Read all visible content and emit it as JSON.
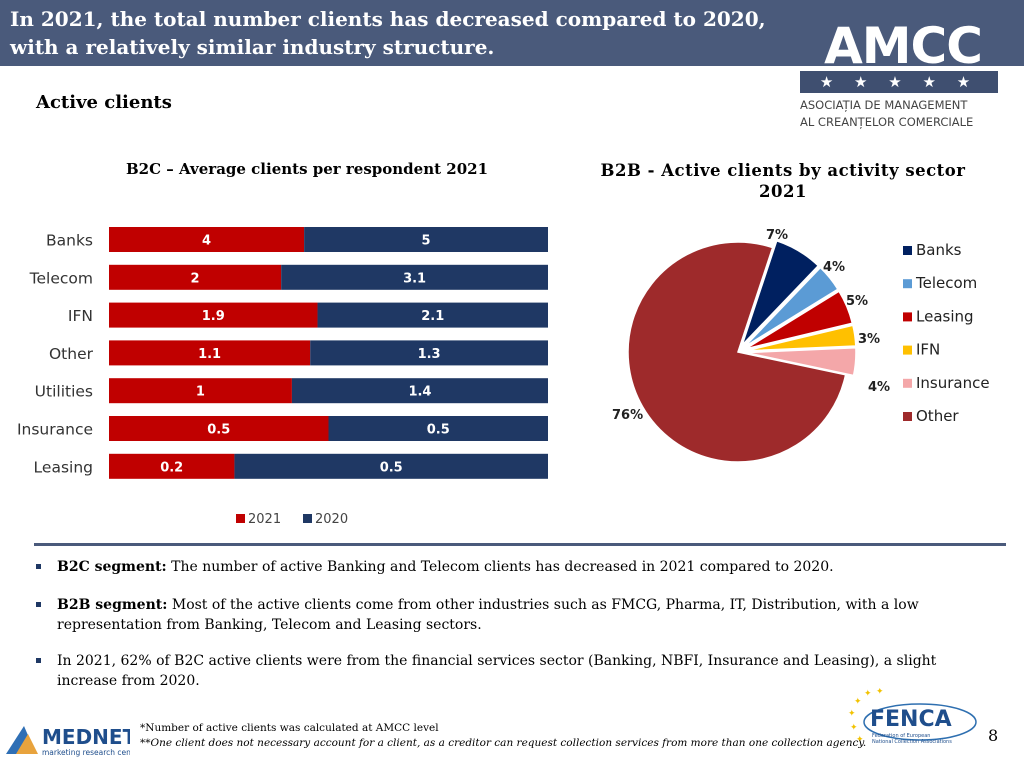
{
  "header": {
    "title": "In 2021, the total number clients has decreased compared to 2020, with a relatively similar industry structure."
  },
  "logo": {
    "name": "AMCC",
    "stars": "★ ★ ★ ★ ★",
    "subtitle_line1": "ASOCIAȚIA DE MANAGEMENT",
    "subtitle_line2": "AL CREANȚELOR COMERCIALE"
  },
  "section_title": "Active clients",
  "colors": {
    "header": "#4a5a7b",
    "series_2021": "#c00000",
    "series_2020": "#1f3864"
  },
  "chart_data": [
    {
      "type": "bar",
      "orientation": "horizontal-stacked-100",
      "title": "B2C – Average clients per respondent 2021",
      "categories": [
        "Banks",
        "Telecom",
        "IFN",
        "Other",
        "Utilities",
        "Insurance",
        "Leasing"
      ],
      "series": [
        {
          "name": "2021",
          "values": [
            4,
            2,
            1.9,
            1.1,
            1,
            0.5,
            0.2
          ],
          "labels": [
            "4",
            "2",
            "1.9",
            "1.1",
            "1",
            "0.5",
            "0.2"
          ],
          "color": "#c00000"
        },
        {
          "name": "2020",
          "values": [
            5,
            3.1,
            2.1,
            1.3,
            1.4,
            0.5,
            0.5
          ],
          "labels": [
            "5",
            "3.1",
            "2.1",
            "1.3",
            "1.4",
            "0.5",
            "0.5"
          ],
          "color": "#1f3864"
        }
      ],
      "legend": [
        "2021",
        "2020"
      ],
      "legend_position": "bottom"
    },
    {
      "type": "pie",
      "title_line1": "B2B - Active clients by activity sector",
      "title_line2": "2021",
      "slices": [
        {
          "label": "Banks",
          "value": 7,
          "text": "7%",
          "color": "#002060"
        },
        {
          "label": "Telecom",
          "value": 4,
          "text": "4%",
          "color": "#5b9bd5"
        },
        {
          "label": "Leasing",
          "value": 5,
          "text": "5%",
          "color": "#c00000"
        },
        {
          "label": "IFN",
          "value": 3,
          "text": "3%",
          "color": "#ffc000"
        },
        {
          "label": "Insurance",
          "value": 4,
          "text": "4%",
          "color": "#f4a7a9"
        },
        {
          "label": "Other",
          "value": 76,
          "text": "76%",
          "color": "#9e2a2b"
        }
      ],
      "legend_position": "right"
    }
  ],
  "bullets": [
    {
      "bold": "B2C segment:",
      "text": " The number of active Banking and Telecom clients has decreased in 2021 compared to 2020."
    },
    {
      "bold": "B2B segment:",
      "text": "  Most of the active clients come from other industries such as FMCG, Pharma, IT, Distribution, with a low representation from Banking, Telecom and Leasing sectors."
    },
    {
      "bold": "",
      "text": "In 2021, 62% of B2C active clients were from the financial services sector (Banking, NBFI, Insurance and Leasing), a slight increase from 2020."
    }
  ],
  "footer": {
    "mednet_name": "MEDNET",
    "mednet_tagline": "marketing research center",
    "fenca_name": "FENCA",
    "fenca_sub1": "Federation of European",
    "fenca_sub2": "National Collection Associations",
    "note1": "*Number of active clients was calculated at AMCC level",
    "note2": "**One client does not necessary account for a client, as a creditor can request collection services from more than one collection agency.",
    "page_number": "8"
  }
}
